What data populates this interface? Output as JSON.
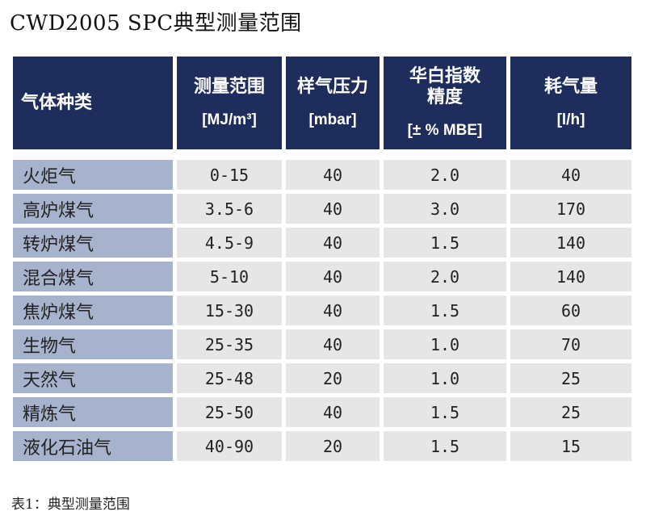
{
  "title": "CWD2005 SPC典型测量范围",
  "table": {
    "headers": [
      {
        "label": "气体种类",
        "unit": ""
      },
      {
        "label": "测量范围",
        "unit": "[MJ/m³]"
      },
      {
        "label": "样气压力",
        "unit": "[mbar]"
      },
      {
        "label": "华白指数\n精度",
        "unit": "[± % MBE]"
      },
      {
        "label": "耗气量",
        "unit": "[l/h]"
      }
    ],
    "rows": [
      [
        "火炬气",
        "0-15",
        "40",
        "2.0",
        "40"
      ],
      [
        "高炉煤气",
        "3.5-6",
        "40",
        "3.0",
        "170"
      ],
      [
        "转炉煤气",
        "4.5-9",
        "40",
        "1.5",
        "140"
      ],
      [
        "混合煤气",
        "5-10",
        "40",
        "2.0",
        "140"
      ],
      [
        "焦炉煤气",
        "15-30",
        "40",
        "1.5",
        "60"
      ],
      [
        "生物气",
        "25-35",
        "40",
        "1.0",
        "70"
      ],
      [
        "天然气",
        "25-48",
        "20",
        "1.0",
        "25"
      ],
      [
        "精炼气",
        "25-50",
        "40",
        "1.5",
        "25"
      ],
      [
        "液化石油气",
        "40-90",
        "20",
        "1.5",
        "15"
      ]
    ]
  },
  "caption": "表1：典型测量范围",
  "colors": {
    "header_bg": "#1e2d5c",
    "name_cell_bg": "#a7b3cc",
    "data_cell_bg": "#e6e6e6"
  }
}
